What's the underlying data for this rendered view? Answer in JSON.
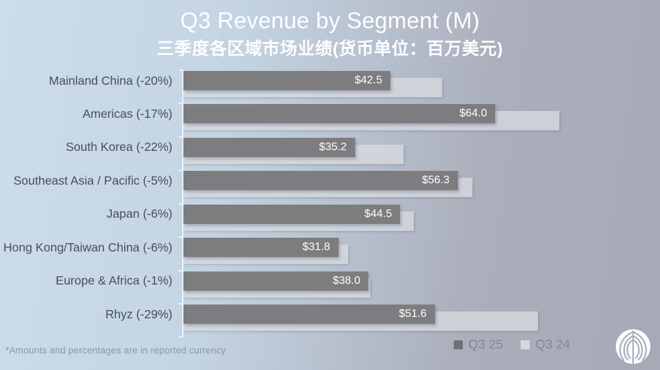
{
  "slide": {
    "title": "Q3 Revenue by Segment (M)",
    "subtitle": "三季度各区域市场业绩(货币单位：百万美元)",
    "footnote": "*Amounts and percentages are in reported currency"
  },
  "legend": {
    "position": "bottom-right",
    "series": [
      {
        "label": "Q3 25",
        "color": "#6f7073"
      },
      {
        "label": "Q3 24",
        "color": "#d6d9de"
      }
    ]
  },
  "colors": {
    "background_left": "#cbdbe9",
    "background_right": "#a7aab7",
    "bar_q3_25": "#7d7d7f",
    "bar_q3_24": "rgba(215,218,223,0.78)",
    "bar_value_text": "#ffffff",
    "category_text": "#46505a",
    "title_text": "#fdfdfe",
    "legend_text": "#84878e",
    "footnote_text": "#8b97a3"
  },
  "chart_data": {
    "type": "bar",
    "orientation": "horizontal",
    "title": "Q3 Revenue by Segment (M)",
    "subtitle": "三季度各区域市场业绩(货币单位：百万美元)",
    "units": "USD millions",
    "categories": [
      "Mainland China (-20%)",
      "Americas (-17%)",
      "South Korea (-22%)",
      "Southeast Asia / Pacific (-5%)",
      "Japan (-6%)",
      "Hong Kong/Taiwan China (-6%)",
      "Europe & Africa (-1%)",
      "Rhyz (-29%)"
    ],
    "yoy_change_pct": [
      -20,
      -17,
      -22,
      -5,
      -6,
      -6,
      -1,
      -29
    ],
    "series": [
      {
        "name": "Q3 25",
        "values": [
          42.5,
          64.0,
          35.2,
          56.3,
          44.5,
          31.8,
          38.0,
          51.6
        ],
        "data_labels": [
          "$42.5",
          "$64.0",
          "$35.2",
          "$56.3",
          "$44.5",
          "$31.8",
          "$38.0",
          "$51.6"
        ]
      },
      {
        "name": "Q3 24",
        "values": [
          53.1,
          77.1,
          45.1,
          59.3,
          47.3,
          33.8,
          38.4,
          72.7
        ],
        "estimated_from_bar_lengths": true,
        "data_labels_visible": false
      }
    ],
    "xlim": [
      0,
      97.8
    ],
    "grid": false,
    "legend_position": "bottom-right"
  }
}
